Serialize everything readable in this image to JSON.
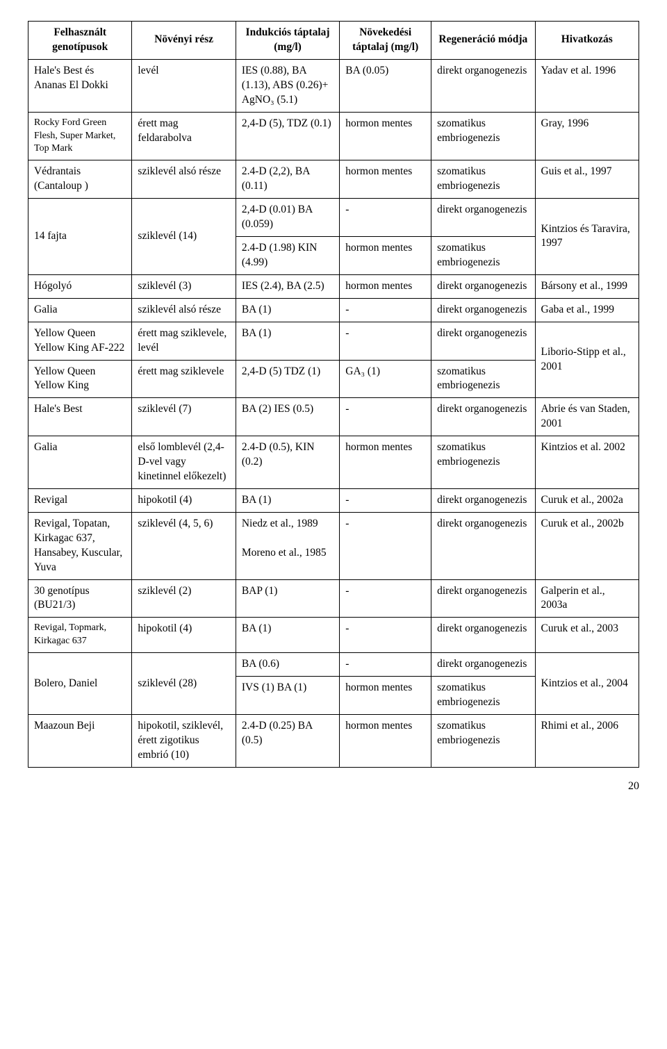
{
  "headers": {
    "c0": "Felhasznált genotípusok",
    "c1": "Növényi rész",
    "c2": "Indukciós táptalaj (mg/l)",
    "c3": "Növekedési táptalaj (mg/l)",
    "c4": "Regeneráció módja",
    "c5": "Hivatkozás"
  },
  "rows": [
    {
      "c0": "Hale's Best és Ananas El Dokki",
      "c1": "levél",
      "c2": "IES (0.88), BA (1.13), ABS (0.26)+ AgNO₃ (5.1)",
      "c3": "BA (0.05)",
      "c4": "direkt organogenezis",
      "c5": "Yadav et al. 1996"
    },
    {
      "c0": "Rocky Ford Green Flesh, Super Market, Top Mark",
      "c0small": true,
      "c1": "érett mag feldarabolva",
      "c2": "2,4-D (5), TDZ (0.1)",
      "c3": "hormon mentes",
      "c4": "szomatikus embriogenezis",
      "c5": "Gray, 1996"
    },
    {
      "c0": "Védrantais (Cantaloup )",
      "c1": "sziklevél alsó része",
      "c2": "2.4-D (2,2), BA (0.11)",
      "c3": "hormon mentes",
      "c4": "szomatikus embriogenezis",
      "c5": "Guis et al., 1997"
    },
    {
      "c0": "14 fajta",
      "c0rowspan": 2,
      "c1": "sziklevél (14)",
      "c1rowspan": 2,
      "c2": "2,4-D (0.01) BA (0.059)",
      "c3": "-",
      "c4": "direkt organogenezis",
      "c5": "Kintzios és Taravira, 1997",
      "c5rowspan": 2
    },
    {
      "c2": "2.4-D (1.98) KIN (4.99)",
      "c3": "hormon mentes",
      "c4": "szomatikus embriogenezis"
    },
    {
      "c0": "Hógolyó",
      "c1": "sziklevél (3)",
      "c2": "IES (2.4), BA (2.5)",
      "c3": "hormon mentes",
      "c4": "direkt organogenezis",
      "c5": "Bársony et al., 1999"
    },
    {
      "c0": "Galia",
      "c1": "sziklevél alsó része",
      "c2": "BA (1)",
      "c3": "-",
      "c4": "direkt organogenezis",
      "c5": "Gaba et al., 1999"
    },
    {
      "c0": "Yellow Queen Yellow King AF-222",
      "c1": "érett mag sziklevele, levél",
      "c2": "BA (1)",
      "c3": "-",
      "c4": "direkt organogenezis",
      "c5": "Liborio-Stipp et al., 2001",
      "c5rowspan": 2
    },
    {
      "c0": "Yellow Queen Yellow King",
      "c1": "érett mag sziklevele",
      "c2": "2,4-D (5) TDZ (1)",
      "c3": "GA₃ (1)",
      "c4": "szomatikus embriogenezis"
    },
    {
      "c0": "Hale's Best",
      "c1": "sziklevél (7)",
      "c2": "BA (2) IES (0.5)",
      "c3": "-",
      "c4": "direkt organogenezis",
      "c5": "Abrie és van Staden, 2001"
    },
    {
      "c0": "Galia",
      "c1": "első lomblevél (2,4-D-vel vagy kinetinnel előkezelt)",
      "c2": "2.4-D (0.5), KIN (0.2)",
      "c3": "hormon mentes",
      "c4": "szomatikus embriogenezis",
      "c5": "Kintzios et al. 2002"
    },
    {
      "c0": "Revigal",
      "c1": "hipokotil (4)",
      "c2": "BA (1)",
      "c3": "-",
      "c4": "direkt organogenezis",
      "c5": "Curuk et al., 2002a"
    },
    {
      "c0": "Revigal, Topatan, Kirkagac 637, Hansabey, Kuscular, Yuva",
      "c0mixed": true,
      "c1": "sziklevél (4, 5, 6)",
      "c2": "Niedz et al., 1989\n\nMoreno et al., 1985",
      "c3": "-",
      "c4": "direkt organogenezis",
      "c5": "Curuk et al., 2002b"
    },
    {
      "c0": "30 genotípus (BU21/3)",
      "c1": "sziklevél (2)",
      "c2": "BAP (1)",
      "c3": "-",
      "c4": "direkt organogenezis",
      "c5": "Galperin et al., 2003a"
    },
    {
      "c0": "Revigal, Topmark, Kirkagac 637",
      "c0small": true,
      "c1": "hipokotil (4)",
      "c2": "BA (1)",
      "c3": "-",
      "c4": "direkt organogenezis",
      "c5": "Curuk et al., 2003"
    },
    {
      "c0": "Bolero, Daniel",
      "c0rowspan": 2,
      "c1": "sziklevél (28)",
      "c1rowspan": 2,
      "c2": "BA (0.6)",
      "c3": "-",
      "c4": "direkt organogenezis",
      "c5": "Kintzios et al., 2004",
      "c5rowspan": 2
    },
    {
      "c2": "IVS (1) BA (1)",
      "c3": "hormon mentes",
      "c4": "szomatikus embriogenezis"
    },
    {
      "c0": "Maazoun Beji",
      "c1": "hipokotil, sziklevél, érett zigotikus embrió (10)",
      "c2": "2.4-D (0.25) BA (0.5)",
      "c3": "hormon mentes",
      "c4": "szomatikus embriogenezis",
      "c5": "Rhimi et al., 2006"
    }
  ],
  "colwidths": [
    "17%",
    "17%",
    "17%",
    "15%",
    "17%",
    "17%"
  ],
  "pagenum": "20"
}
